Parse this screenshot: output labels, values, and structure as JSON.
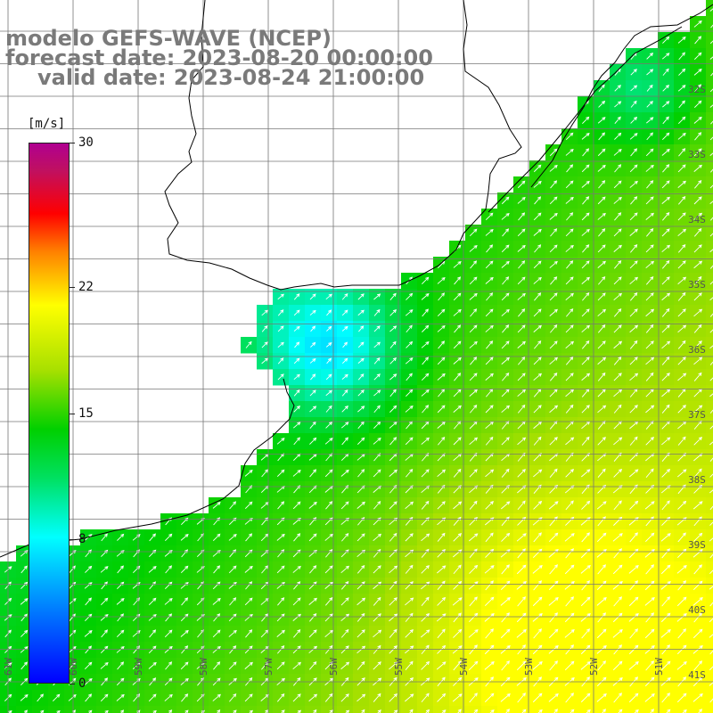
{
  "title": {
    "line1": "modelo GEFS-WAVE (NCEP)",
    "line2": "forecast date: 2023-08-20 00:00:00",
    "line3": "valid date: 2023-08-24 21:00:00"
  },
  "colorbar": {
    "unit": "[m/s]",
    "labels": [
      "30",
      "22",
      "15",
      "8",
      "0"
    ],
    "label_values": [
      30,
      22,
      15,
      8,
      0
    ],
    "min": 0,
    "max": 30
  },
  "latitude_labels": [
    "32S",
    "33S",
    "34S",
    "35S",
    "36S",
    "37S",
    "38S",
    "39S",
    "40S",
    "41S"
  ],
  "longitude_labels": [
    "61W",
    "60W",
    "59W",
    "58W",
    "57W",
    "56W",
    "55W",
    "54W",
    "53W",
    "52W",
    "51W"
  ],
  "colors": {
    "land": "#ffffff",
    "grid": "#888888",
    "coast": "#000000",
    "arrows": "#ffffff",
    "title": "#7a7a7a"
  }
}
